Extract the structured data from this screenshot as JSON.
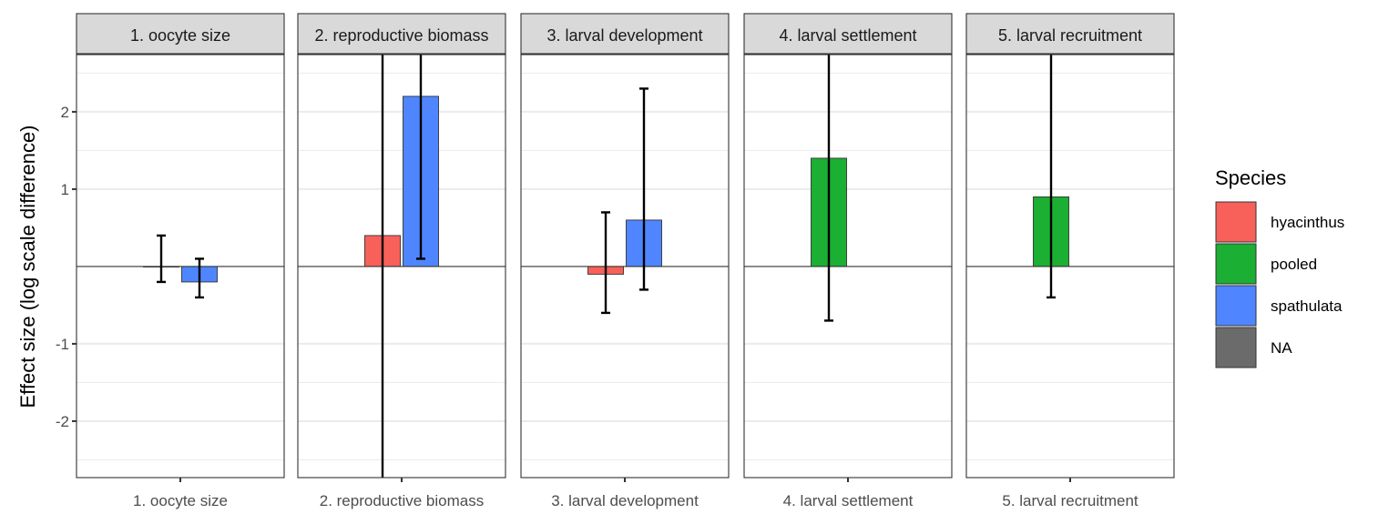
{
  "chart_data": {
    "type": "bar",
    "facet_by": "outcome",
    "ylabel": "Effect size (log scale difference)",
    "xlabel": "",
    "ylim": [
      -2.73,
      2.74
    ],
    "y_ticks": [
      -2,
      -1,
      1,
      2
    ],
    "y_minor_gridlines": [
      -2.5,
      -1.5,
      1.5,
      2.5
    ],
    "reference_line": 0,
    "grid": true,
    "legend": {
      "title": "Species",
      "position": "right",
      "entries": [
        {
          "name": "hyacinthus",
          "color": "#F8605A"
        },
        {
          "name": "pooled",
          "color": "#1BAF33"
        },
        {
          "name": "spathulata",
          "color": "#4F86FF"
        },
        {
          "name": "NA",
          "color": "#6B6B6B"
        }
      ]
    },
    "facets": [
      {
        "strip_label": "1. oocyte size",
        "x_label": "1. oocyte size",
        "bars": [
          {
            "species": "hyacinthus",
            "value": 0.0,
            "lower": -0.2,
            "upper": 0.4,
            "slot": 0
          },
          {
            "species": "spathulata",
            "value": -0.2,
            "lower": -0.4,
            "upper": 0.1,
            "slot": 1
          }
        ]
      },
      {
        "strip_label": "2. reproductive biomass",
        "x_label": "2. reproductive biomass",
        "bars": [
          {
            "species": "hyacinthus",
            "value": 0.4,
            "lower": -2.73,
            "upper": 2.74,
            "lower_clipped": true,
            "upper_clipped": true,
            "slot": 0
          },
          {
            "species": "spathulata",
            "value": 2.2,
            "lower": 0.1,
            "upper": 2.74,
            "upper_clipped": true,
            "slot": 1
          }
        ]
      },
      {
        "strip_label": "3. larval development",
        "x_label": "3. larval development",
        "bars": [
          {
            "species": "hyacinthus",
            "value": -0.1,
            "lower": -0.6,
            "upper": 0.7,
            "slot": 0
          },
          {
            "species": "spathulata",
            "value": 0.6,
            "lower": -0.3,
            "upper": 2.3,
            "slot": 1
          }
        ]
      },
      {
        "strip_label": "4. larval settlement",
        "x_label": "4. larval settlement",
        "bars": [
          {
            "species": "pooled",
            "value": 1.4,
            "lower": -0.7,
            "upper": 2.74,
            "upper_clipped": true,
            "slot": 0
          }
        ]
      },
      {
        "strip_label": "5. larval recruitment",
        "x_label": "5. larval recruitment",
        "bars": [
          {
            "species": "pooled",
            "value": 0.9,
            "lower": -0.4,
            "upper": 2.74,
            "upper_clipped": true,
            "slot": 0
          }
        ]
      }
    ]
  }
}
